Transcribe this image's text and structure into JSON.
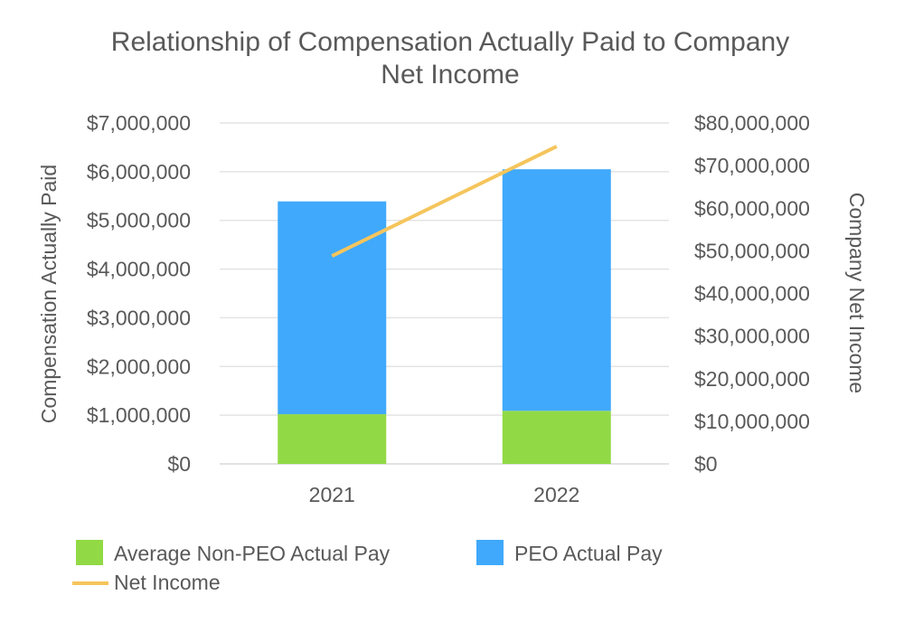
{
  "chart_data": {
    "type": "bar",
    "title_lines": [
      "Relationship of Compensation Actually Paid to Company",
      "Net Income"
    ],
    "categories": [
      "2021",
      "2022"
    ],
    "stacked": true,
    "series": [
      {
        "name": "Average Non-PEO Actual Pay",
        "kind": "bar",
        "axis": "left",
        "color": "#92d946",
        "values": [
          1020000,
          1090000
        ]
      },
      {
        "name": "PEO Actual Pay",
        "kind": "bar",
        "axis": "left",
        "color": "#40a9fb",
        "values": [
          4370000,
          4960000
        ]
      },
      {
        "name": "Net Income",
        "kind": "line",
        "axis": "right",
        "color": "#f5c55c",
        "values": [
          48800000,
          74500000
        ]
      }
    ],
    "y_left": {
      "label": "Compensation Actually Paid",
      "min": 0,
      "max": 7000000,
      "ticks": [
        0,
        1000000,
        2000000,
        3000000,
        4000000,
        5000000,
        6000000,
        7000000
      ],
      "tick_labels": [
        "$0",
        "$1,000,000",
        "$2,000,000",
        "$3,000,000",
        "$4,000,000",
        "$5,000,000",
        "$6,000,000",
        "$7,000,000"
      ]
    },
    "y_right": {
      "label": "Company Net Income",
      "min": 0,
      "max": 80000000,
      "ticks": [
        0,
        10000000,
        20000000,
        30000000,
        40000000,
        50000000,
        60000000,
        70000000,
        80000000
      ],
      "tick_labels": [
        "$0",
        "$10,000,000",
        "$20,000,000",
        "$30,000,000",
        "$40,000,000",
        "$50,000,000",
        "$60,000,000",
        "$70,000,000",
        "$80,000,000"
      ]
    },
    "gridlines": true,
    "legend_position": "bottom"
  }
}
